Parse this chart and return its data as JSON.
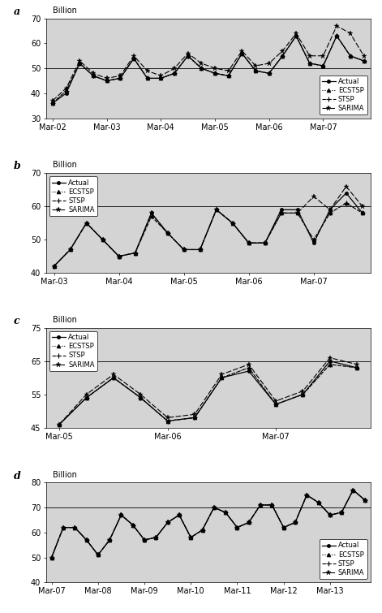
{
  "panels": [
    {
      "label": "a",
      "ylabel": "Billion",
      "ylim": [
        30,
        70
      ],
      "yticks": [
        30,
        40,
        50,
        60,
        70
      ],
      "hline": 50,
      "xtick_labels": [
        "Mar-02",
        "Mar-03",
        "Mar-04",
        "Mar-05",
        "Mar-06",
        "Mar-07"
      ],
      "xtick_positions": [
        0,
        4,
        8,
        12,
        16,
        20
      ],
      "n_points": 24,
      "legend_loc": "lower right",
      "actual": [
        36,
        40,
        52,
        47,
        45,
        46,
        54,
        46,
        46,
        48,
        55,
        50,
        48,
        47,
        56,
        49,
        48,
        55,
        63,
        52,
        51,
        63,
        55,
        53
      ],
      "ecstsp": [
        36,
        41,
        52,
        47,
        45,
        46,
        54,
        46,
        46,
        48,
        55,
        50,
        48,
        47,
        56,
        49,
        48,
        55,
        63,
        52,
        51,
        63,
        55,
        53
      ],
      "stsp": [
        36,
        41,
        52,
        47,
        45,
        46,
        54,
        46,
        46,
        48,
        55,
        50,
        48,
        47,
        56,
        49,
        48,
        55,
        63,
        52,
        51,
        63,
        55,
        53
      ],
      "sarima": [
        37,
        42,
        53,
        48,
        46,
        47,
        55,
        49,
        47,
        50,
        56,
        52,
        50,
        49,
        57,
        51,
        52,
        57,
        64,
        55,
        55,
        67,
        64,
        55
      ]
    },
    {
      "label": "b",
      "ylabel": "Billion",
      "ylim": [
        40,
        70
      ],
      "yticks": [
        40,
        50,
        60,
        70
      ],
      "hline": 60,
      "xtick_labels": [
        "Mar-03",
        "Mar-04",
        "Mar-05",
        "Mar-06",
        "Mar-07"
      ],
      "xtick_positions": [
        0,
        4,
        8,
        12,
        16
      ],
      "n_points": 20,
      "legend_loc": "upper left",
      "actual": [
        42,
        47,
        55,
        50,
        45,
        46,
        58,
        52,
        47,
        47,
        59,
        55,
        49,
        49,
        59,
        59,
        49,
        59,
        64,
        58
      ],
      "ecstsp": [
        42,
        47,
        55,
        50,
        45,
        46,
        57,
        52,
        47,
        47,
        59,
        55,
        49,
        49,
        58,
        58,
        50,
        58,
        61,
        58
      ],
      "stsp": [
        42,
        47,
        55,
        50,
        45,
        46,
        57,
        52,
        47,
        47,
        59,
        55,
        49,
        49,
        58,
        58,
        50,
        58,
        61,
        58
      ],
      "sarima": [
        42,
        47,
        55,
        50,
        45,
        46,
        58,
        52,
        47,
        47,
        59,
        55,
        49,
        49,
        58,
        58,
        63,
        59,
        66,
        60
      ]
    },
    {
      "label": "c",
      "ylabel": "Billion",
      "ylim": [
        45,
        75
      ],
      "yticks": [
        45,
        55,
        65,
        75
      ],
      "hline": 65,
      "xtick_labels": [
        "Mar-05",
        "Mar-06",
        "Mar-07"
      ],
      "xtick_positions": [
        0,
        4,
        8
      ],
      "n_points": 12,
      "legend_loc": "upper left",
      "actual": [
        46,
        54,
        60,
        54,
        47,
        48,
        60,
        62,
        52,
        55,
        65,
        63
      ],
      "ecstsp": [
        46,
        54,
        60,
        54,
        47,
        48,
        60,
        63,
        52,
        55,
        64,
        63
      ],
      "stsp": [
        46,
        54,
        60,
        54,
        47,
        48,
        60,
        63,
        52,
        55,
        64,
        63
      ],
      "sarima": [
        46,
        55,
        61,
        55,
        48,
        49,
        61,
        64,
        53,
        56,
        66,
        64
      ]
    },
    {
      "label": "d",
      "ylabel": "Billion",
      "ylim": [
        40,
        80
      ],
      "yticks": [
        40,
        50,
        60,
        70,
        80
      ],
      "hline": 70,
      "xtick_labels": [
        "Mar-07",
        "Mar-08",
        "Mar-09",
        "Mar-10",
        "Mar-11",
        "Mar-12",
        "Mar-13"
      ],
      "xtick_positions": [
        0,
        4,
        8,
        12,
        16,
        20,
        24
      ],
      "n_points": 28,
      "legend_loc": "lower right",
      "actual": [
        50,
        62,
        62,
        57,
        51,
        57,
        67,
        63,
        57,
        58,
        64,
        67,
        58,
        61,
        70,
        68,
        62,
        64,
        71,
        71,
        62,
        64,
        75,
        72,
        67,
        68,
        77,
        73
      ],
      "ecstsp": [
        50,
        62,
        62,
        57,
        51,
        57,
        67,
        63,
        57,
        58,
        64,
        67,
        58,
        61,
        70,
        68,
        62,
        64,
        71,
        71,
        62,
        64,
        75,
        72,
        67,
        68,
        77,
        73
      ],
      "stsp": [
        50,
        62,
        62,
        57,
        51,
        57,
        67,
        63,
        57,
        58,
        64,
        67,
        58,
        61,
        70,
        68,
        62,
        64,
        71,
        71,
        62,
        64,
        75,
        72,
        67,
        68,
        77,
        73
      ],
      "sarima": [
        50,
        62,
        62,
        57,
        51,
        57,
        67,
        63,
        57,
        58,
        64,
        67,
        58,
        61,
        70,
        68,
        62,
        64,
        71,
        71,
        62,
        64,
        75,
        72,
        67,
        68,
        77,
        73
      ]
    }
  ],
  "bg_color": "#d4d4d4",
  "line_color": "#000000"
}
